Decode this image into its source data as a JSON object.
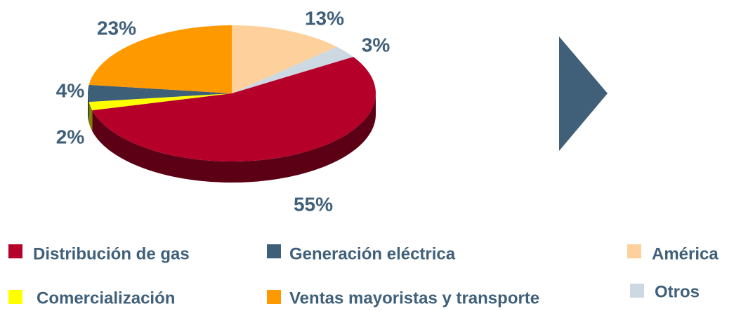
{
  "chart_data": {
    "type": "pie",
    "categories": [
      "América",
      "Otros",
      "Distribución de gas",
      "Comercialización",
      "Generación eléctrica",
      "Ventas mayoristas y transporte"
    ],
    "values": [
      13,
      3,
      55,
      2,
      4,
      23
    ],
    "value_labels": [
      "13%",
      "3%",
      "55%",
      "2%",
      "4%",
      "23%"
    ],
    "colors": [
      "#fdd09c",
      "#ccd9e3",
      "#b5002a",
      "#ffff00",
      "#3e5f78",
      "#ff9900"
    ],
    "legend": true
  }
}
